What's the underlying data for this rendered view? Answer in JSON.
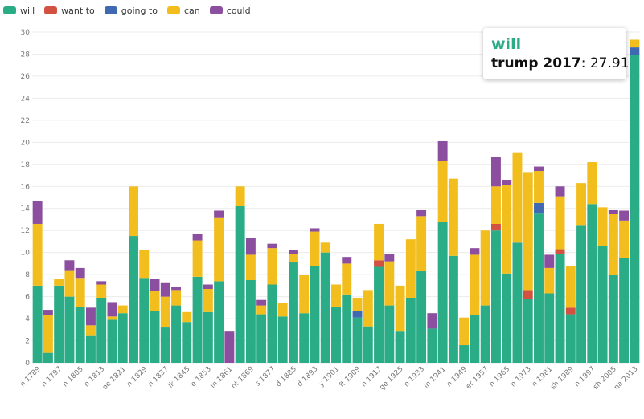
{
  "legend": [
    {
      "name": "will",
      "color": "#2aac87"
    },
    {
      "name": "want to",
      "color": "#d25140"
    },
    {
      "name": "going to",
      "color": "#3f6ab2"
    },
    {
      "name": "can",
      "color": "#f2be1d"
    },
    {
      "name": "could",
      "color": "#8c4e9e"
    }
  ],
  "tooltip": {
    "series": "will",
    "label": "trump 2017",
    "value": ": 27.91"
  },
  "chart_data": {
    "type": "bar",
    "stacked": true,
    "ylim": [
      0,
      30
    ],
    "yticks": [
      0,
      2,
      4,
      6,
      8,
      10,
      12,
      14,
      16,
      18,
      20,
      22,
      24,
      26,
      28,
      30
    ],
    "grid": true,
    "legend_position": "top-left",
    "xtick_labels": [
      {
        "index": 0,
        "label": "n 1789"
      },
      {
        "index": 2,
        "label": "n 1797"
      },
      {
        "index": 4,
        "label": "n 1805"
      },
      {
        "index": 6,
        "label": "n 1813"
      },
      {
        "index": 8,
        "label": "oe 1821"
      },
      {
        "index": 10,
        "label": "n 1829"
      },
      {
        "index": 12,
        "label": "n 1837"
      },
      {
        "index": 14,
        "label": "lk 1845"
      },
      {
        "index": 16,
        "label": "e 1853"
      },
      {
        "index": 18,
        "label": "ln 1861"
      },
      {
        "index": 20,
        "label": "nt 1869"
      },
      {
        "index": 22,
        "label": "s 1877"
      },
      {
        "index": 24,
        "label": "d 1885"
      },
      {
        "index": 26,
        "label": "d 1893"
      },
      {
        "index": 28,
        "label": "y 1901"
      },
      {
        "index": 30,
        "label": "ft 1909"
      },
      {
        "index": 32,
        "label": "n 1917"
      },
      {
        "index": 34,
        "label": "ge 1925"
      },
      {
        "index": 36,
        "label": "n 1933"
      },
      {
        "index": 38,
        "label": "in 1941"
      },
      {
        "index": 40,
        "label": "n 1949"
      },
      {
        "index": 42,
        "label": "er 1957"
      },
      {
        "index": 44,
        "label": "n 1965"
      },
      {
        "index": 46,
        "label": "n 1973"
      },
      {
        "index": 48,
        "label": "n 1981"
      },
      {
        "index": 50,
        "label": "sh 1989"
      },
      {
        "index": 52,
        "label": "n 1997"
      },
      {
        "index": 54,
        "label": "sh 2005"
      },
      {
        "index": 56,
        "label": "na 2013"
      }
    ],
    "series": [
      {
        "name": "will",
        "values": [
          7.0,
          0.9,
          7.0,
          6.0,
          5.1,
          2.5,
          5.9,
          3.9,
          4.5,
          11.5,
          7.7,
          4.7,
          3.2,
          5.2,
          3.7,
          7.8,
          4.6,
          7.4,
          0,
          14.2,
          7.5,
          4.4,
          7.1,
          4.2,
          9.1,
          4.5,
          8.8,
          10.0,
          5.1,
          6.2,
          4.1,
          3.3,
          8.7,
          5.2,
          2.9,
          5.9,
          8.3,
          3.1,
          12.8,
          9.7,
          1.6,
          4.3,
          5.2,
          12.0,
          8.1,
          10.9,
          5.8,
          13.6,
          6.3,
          9.9,
          4.4,
          12.5,
          14.4,
          10.6,
          8.0,
          9.5,
          27.91
        ]
      },
      {
        "name": "want to",
        "values": [
          0,
          0,
          0,
          0,
          0,
          0,
          0,
          0,
          0,
          0,
          0,
          0,
          0,
          0,
          0,
          0,
          0,
          0,
          0,
          0,
          0,
          0,
          0,
          0,
          0,
          0,
          0,
          0,
          0,
          0,
          0,
          0,
          0.6,
          0,
          0,
          0,
          0,
          0,
          0,
          0,
          0,
          0,
          0,
          0.6,
          0,
          0,
          0.8,
          0,
          0,
          0.4,
          0.6,
          0,
          0,
          0,
          0,
          0,
          0
        ]
      },
      {
        "name": "going to",
        "values": [
          0,
          0,
          0,
          0,
          0,
          0,
          0,
          0,
          0,
          0,
          0,
          0,
          0,
          0,
          0,
          0,
          0,
          0,
          0,
          0,
          0,
          0,
          0,
          0,
          0,
          0,
          0,
          0,
          0,
          0,
          0.6,
          0,
          0,
          0,
          0,
          0,
          0,
          0,
          0,
          0,
          0,
          0,
          0,
          0,
          0,
          0,
          0,
          0.9,
          0,
          0,
          0,
          0,
          0,
          0,
          0,
          0,
          0.7
        ]
      },
      {
        "name": "can",
        "values": [
          5.6,
          3.4,
          0.6,
          2.4,
          2.6,
          0.9,
          1.2,
          0.3,
          0.7,
          4.5,
          2.5,
          1.8,
          2.8,
          1.4,
          0.9,
          3.3,
          2.1,
          5.8,
          0,
          1.8,
          2.3,
          0.8,
          3.3,
          1.2,
          0.8,
          3.5,
          3.1,
          0.9,
          2.0,
          2.8,
          1.2,
          3.3,
          3.3,
          4.0,
          4.1,
          5.3,
          5.0,
          0,
          5.5,
          7.0,
          2.5,
          5.5,
          6.8,
          3.4,
          8.0,
          8.2,
          10.7,
          2.9,
          2.3,
          4.8,
          3.8,
          3.8,
          3.8,
          3.5,
          5.5,
          3.4,
          0.7
        ]
      },
      {
        "name": "could",
        "values": [
          2.1,
          0.5,
          0,
          0.9,
          0.9,
          1.6,
          0.3,
          1.3,
          0,
          0,
          0,
          1.1,
          1.3,
          0.3,
          0,
          0.6,
          0.4,
          0.6,
          2.9,
          0,
          1.5,
          0.5,
          0.4,
          0,
          0.3,
          0,
          0.3,
          0,
          0,
          0.6,
          0,
          0,
          0,
          0.7,
          0,
          0,
          0.6,
          1.4,
          1.8,
          0,
          0,
          0.6,
          0,
          2.7,
          0.5,
          0,
          0,
          0.4,
          1.2,
          0.9,
          0,
          0,
          0,
          0,
          0.4,
          0.9,
          0
        ]
      }
    ]
  }
}
